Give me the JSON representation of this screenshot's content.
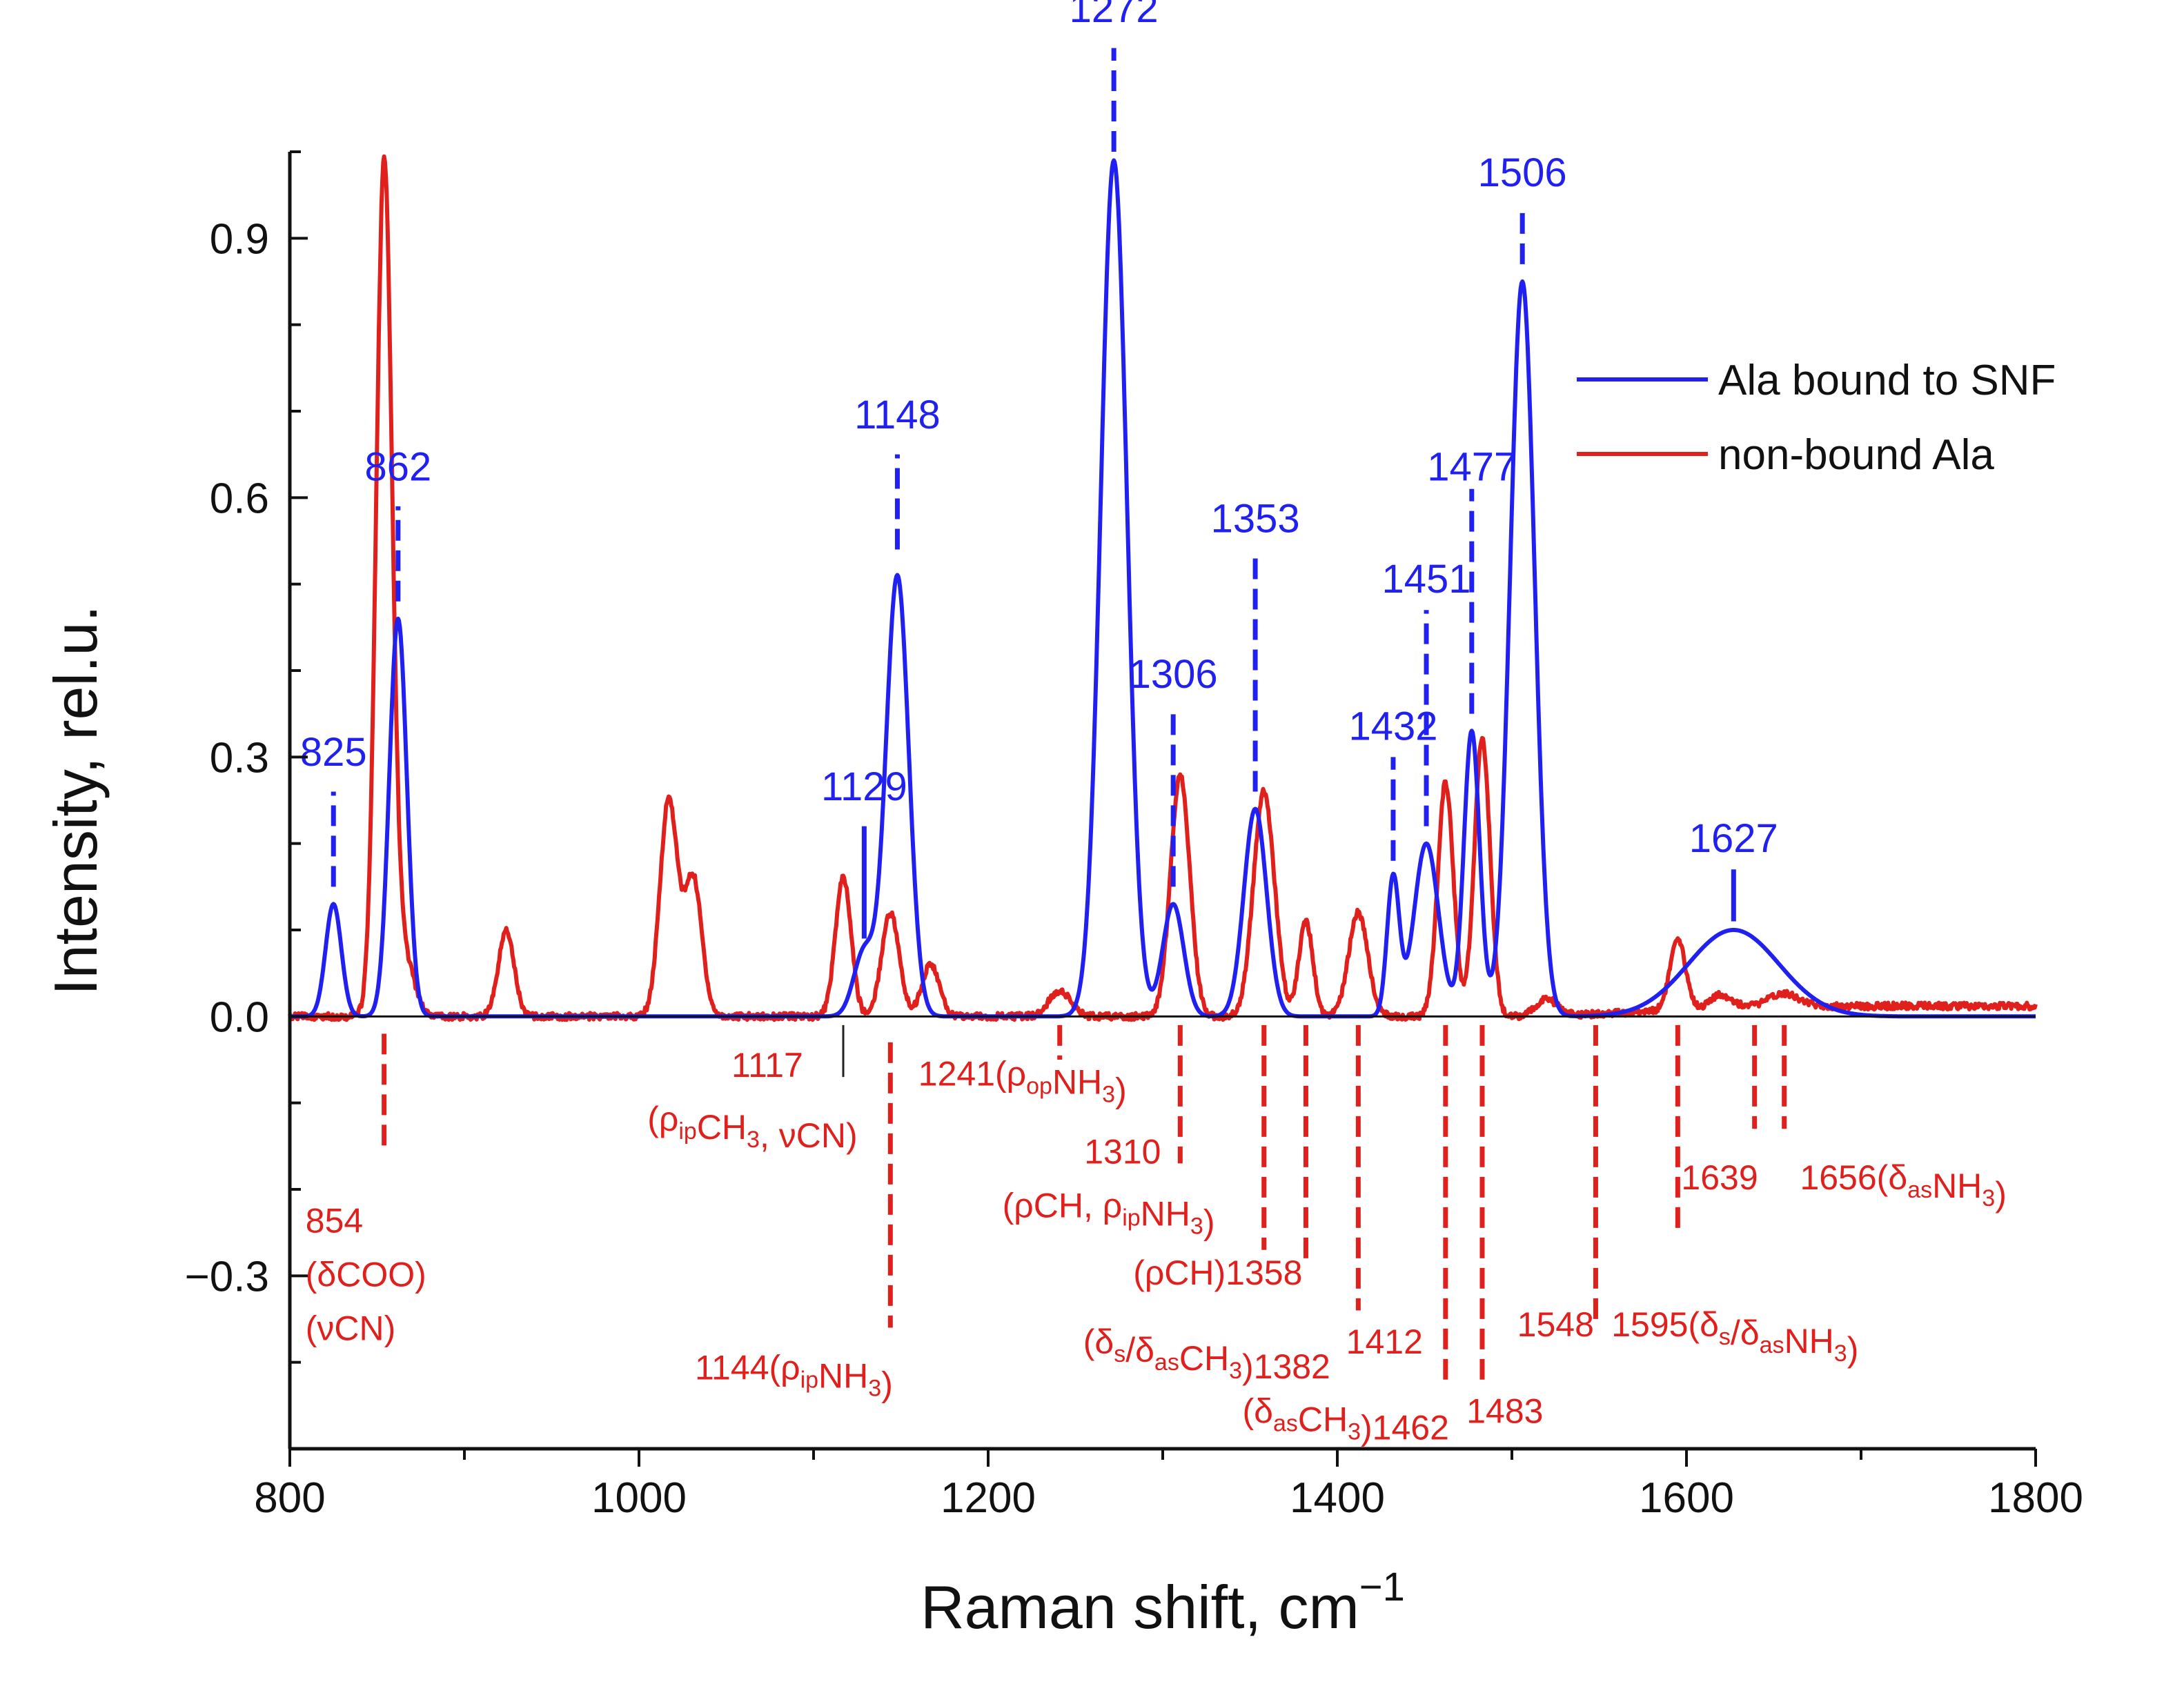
{
  "chart_data": {
    "type": "line",
    "xlabel": "Raman shift, cm",
    "xlabel_superscript": "−1",
    "ylabel": "Intensity, rel.u.",
    "xlim": [
      800,
      1800
    ],
    "ylim": [
      -0.5,
      1.0
    ],
    "x_ticks": [
      800,
      1000,
      1200,
      1400,
      1600,
      1800
    ],
    "x_tick_labels": [
      "800",
      "1000",
      "1200",
      "1400",
      "1600",
      "1800"
    ],
    "y_ticks": [
      -0.3,
      0.0,
      0.3,
      0.6,
      0.9
    ],
    "y_tick_labels": [
      "−0.3",
      "0.0",
      "0.3",
      "0.6",
      "0.9"
    ],
    "legend_position": "top-right",
    "series": [
      {
        "name": "Ala bound to SNF",
        "color": "#2020f0",
        "peaks": [
          {
            "center": 825,
            "height": 0.13,
            "width": 4.5
          },
          {
            "center": 862,
            "height": 0.46,
            "width": 5.0
          },
          {
            "center": 1129,
            "height": 0.075,
            "width": 6.0
          },
          {
            "center": 1148,
            "height": 0.51,
            "width": 6.5
          },
          {
            "center": 1272,
            "height": 0.99,
            "width": 7.5
          },
          {
            "center": 1306,
            "height": 0.13,
            "width": 6.0
          },
          {
            "center": 1353,
            "height": 0.24,
            "width": 6.5
          },
          {
            "center": 1432,
            "height": 0.16,
            "width": 3.5
          },
          {
            "center": 1451,
            "height": 0.2,
            "width": 7.0
          },
          {
            "center": 1477,
            "height": 0.33,
            "width": 4.5
          },
          {
            "center": 1506,
            "height": 0.85,
            "width": 7.0
          },
          {
            "center": 1627,
            "height": 0.1,
            "width": 26.0
          }
        ]
      },
      {
        "name": "non-bound Ala",
        "color": "#e0201c",
        "peaks": [
          {
            "center": 854,
            "height": 0.98,
            "width": 4.5
          },
          {
            "center": 865,
            "height": 0.07,
            "width": 6.0
          },
          {
            "center": 924,
            "height": 0.1,
            "width": 4.5
          },
          {
            "center": 1017,
            "height": 0.25,
            "width": 5.0
          },
          {
            "center": 1031,
            "height": 0.16,
            "width": 5.0
          },
          {
            "center": 1117,
            "height": 0.16,
            "width": 4.5
          },
          {
            "center": 1144,
            "height": 0.12,
            "width": 5.0
          },
          {
            "center": 1167,
            "height": 0.06,
            "width": 5.0
          },
          {
            "center": 1241,
            "height": 0.03,
            "width": 6.0
          },
          {
            "center": 1310,
            "height": 0.28,
            "width": 5.5
          },
          {
            "center": 1358,
            "height": 0.26,
            "width": 6.0
          },
          {
            "center": 1382,
            "height": 0.11,
            "width": 4.0
          },
          {
            "center": 1412,
            "height": 0.12,
            "width": 5.5
          },
          {
            "center": 1462,
            "height": 0.27,
            "width": 4.5
          },
          {
            "center": 1483,
            "height": 0.32,
            "width": 4.5
          },
          {
            "center": 1520,
            "height": 0.02,
            "width": 6.0
          },
          {
            "center": 1595,
            "height": 0.08,
            "width": 4.5
          },
          {
            "center": 1620,
            "height": 0.015,
            "width": 6.0
          },
          {
            "center": 1656,
            "height": 0.015,
            "width": 8.0
          }
        ],
        "baseline_noise": 0.008
      }
    ],
    "blue_annotations": [
      {
        "x": 825,
        "label": "825",
        "style": "dashed",
        "y_line": [
          0.15,
          0.26
        ],
        "y_text": 0.29
      },
      {
        "x": 862,
        "label": "862",
        "style": "dashed",
        "y_line": [
          0.48,
          0.59
        ],
        "y_text": 0.62
      },
      {
        "x": 1129,
        "label": "1129",
        "style": "solid",
        "y_line": [
          0.09,
          0.22
        ],
        "y_text": 0.25
      },
      {
        "x": 1148,
        "label": "1148",
        "style": "dashed",
        "y_line": [
          0.54,
          0.65
        ],
        "y_text": 0.68
      },
      {
        "x": 1272,
        "label": "1272",
        "style": "dashed",
        "y_line": [
          1.0,
          1.12
        ],
        "y_text": 1.15
      },
      {
        "x": 1306,
        "label": "1306",
        "style": "dashed",
        "y_line": [
          0.15,
          0.35
        ],
        "y_text": 0.38
      },
      {
        "x": 1353,
        "label": "1353",
        "style": "dashed",
        "y_line": [
          0.26,
          0.54
        ],
        "y_text": 0.56
      },
      {
        "x": 1432,
        "label": "1432",
        "style": "dashed",
        "y_line": [
          0.18,
          0.3
        ],
        "y_text": 0.32
      },
      {
        "x": 1451,
        "label": "1451",
        "style": "dashed",
        "y_line": [
          0.22,
          0.47
        ],
        "y_text": 0.49
      },
      {
        "x": 1477,
        "label": "1477",
        "style": "dashed",
        "y_line": [
          0.35,
          0.61
        ],
        "y_text": 0.62
      },
      {
        "x": 1506,
        "label": "1506",
        "style": "dashed",
        "y_line": [
          0.87,
          0.94
        ],
        "y_text": 0.96
      },
      {
        "x": 1627,
        "label": "1627",
        "style": "solid",
        "y_line": [
          0.11,
          0.17
        ],
        "y_text": 0.19
      }
    ],
    "red_annotations": [
      {
        "x": 854,
        "y_line": [
          -0.02,
          -0.16
        ],
        "lines": [
          {
            "parts": [
              {
                "t": "854"
              }
            ]
          },
          {
            "parts": [
              {
                "t": "(δCOO)"
              }
            ]
          },
          {
            "parts": [
              {
                "t": "(νCN)"
              }
            ]
          }
        ],
        "x_text": 809,
        "y_text": -0.25,
        "anchor": "start"
      },
      {
        "x": 1117,
        "y_line": [
          -0.01,
          -0.07
        ],
        "style": "thin",
        "lines": [
          {
            "parts": [
              {
                "t": "1117"
              }
            ]
          },
          {
            "parts": [
              {
                "t": "(ρ"
              },
              {
                "t": "ip",
                "sub": true
              },
              {
                "t": "CH"
              },
              {
                "t": "3",
                "sub": true
              },
              {
                "t": ", νCN)"
              }
            ]
          }
        ],
        "x_text": 1094,
        "y_text": -0.07,
        "anchor": "end",
        "second_anchor": "middle",
        "second_x": 1065
      },
      {
        "x": 1144,
        "y_line": [
          -0.03,
          -0.36
        ],
        "lines": [
          {
            "parts": [
              {
                "t": "1144(ρ"
              },
              {
                "t": "ip",
                "sub": true
              },
              {
                "t": "NH"
              },
              {
                "t": "3",
                "sub": true
              },
              {
                "t": ")"
              }
            ]
          }
        ],
        "x_text": 1032,
        "y_text": -0.42,
        "anchor": "start"
      },
      {
        "x": 1241,
        "y_line": [
          -0.01,
          -0.05
        ],
        "lines": [
          {
            "parts": [
              {
                "t": "1241(ρ"
              },
              {
                "t": "op",
                "sub": true
              },
              {
                "t": "NH"
              },
              {
                "t": "3",
                "sub": true
              },
              {
                "t": ")"
              }
            ]
          }
        ],
        "x_text": 1160,
        "y_text": -0.08,
        "anchor": "start"
      },
      {
        "x": 1310,
        "y_line": [
          -0.01,
          -0.17
        ],
        "lines": [
          {
            "parts": [
              {
                "t": "1310"
              }
            ]
          },
          {
            "parts": [
              {
                "t": "(ρCH, ρ"
              },
              {
                "t": "ip",
                "sub": true
              },
              {
                "t": "NH"
              },
              {
                "t": "3",
                "sub": true
              },
              {
                "t": ")"
              }
            ]
          }
        ],
        "x_text": 1299,
        "y_text": -0.17,
        "anchor": "end",
        "second_anchor": "middle",
        "second_x": 1269
      },
      {
        "x": 1358,
        "y_line": [
          -0.01,
          -0.27
        ],
        "lines": [
          {
            "parts": [
              {
                "t": "(ρCH)1358"
              }
            ]
          }
        ],
        "x_text": 1380,
        "y_text": -0.31,
        "anchor": "end"
      },
      {
        "x": 1382,
        "y_line": [
          -0.01,
          -0.29
        ],
        "lines": [
          {
            "parts": [
              {
                "t": "(δ"
              },
              {
                "t": "s",
                "sub": true
              },
              {
                "t": "/δ"
              },
              {
                "t": "as",
                "sub": true
              },
              {
                "t": "CH"
              },
              {
                "t": "3",
                "sub": true
              },
              {
                "t": ")1382"
              }
            ]
          }
        ],
        "x_text": 1396,
        "y_text": -0.39,
        "anchor": "end"
      },
      {
        "x": 1412,
        "y_line": [
          -0.01,
          -0.34
        ],
        "lines": [
          {
            "parts": [
              {
                "t": "1412"
              }
            ]
          }
        ],
        "x_text": 1405,
        "y_text": -0.39,
        "anchor": "start"
      },
      {
        "x": 1462,
        "y_line": [
          -0.01,
          -0.42
        ],
        "lines": [
          {
            "parts": [
              {
                "t": "(δ"
              },
              {
                "t": "as",
                "sub": true
              },
              {
                "t": "CH"
              },
              {
                "t": "3",
                "sub": true
              },
              {
                "t": ")1462"
              }
            ]
          }
        ],
        "x_text": 1464,
        "y_text": -0.47,
        "anchor": "end"
      },
      {
        "x": 1483,
        "y_line": [
          -0.01,
          -0.42
        ],
        "lines": [
          {
            "parts": [
              {
                "t": "1483"
              }
            ]
          }
        ],
        "x_text": 1474,
        "y_text": -0.47,
        "anchor": "start"
      },
      {
        "x": 1548,
        "y_line": [
          -0.01,
          -0.36
        ],
        "lines": [
          {
            "parts": [
              {
                "t": "1548"
              }
            ]
          }
        ],
        "x_text": 1547,
        "y_text": -0.37,
        "anchor": "end"
      },
      {
        "x": 1595,
        "y_line": [
          -0.01,
          -0.25
        ],
        "lines": [
          {
            "parts": [
              {
                "t": "1595(δ"
              },
              {
                "t": "s",
                "sub": true
              },
              {
                "t": "/δ"
              },
              {
                "t": "as",
                "sub": true
              },
              {
                "t": "NH"
              },
              {
                "t": "3",
                "sub": true
              },
              {
                "t": ")"
              }
            ]
          }
        ],
        "x_text": 1557,
        "y_text": -0.37,
        "anchor": "start"
      },
      {
        "x": 1639,
        "y_line": [
          -0.01,
          -0.13
        ],
        "lines": [
          {
            "parts": [
              {
                "t": "1639"
              }
            ]
          }
        ],
        "x_text": 1597,
        "y_text": -0.2,
        "anchor": "start"
      },
      {
        "x": 1656,
        "y_line": [
          -0.01,
          -0.13
        ],
        "lines": [
          {
            "parts": [
              {
                "t": "1656(δ"
              },
              {
                "t": "as",
                "sub": true
              },
              {
                "t": "NH"
              },
              {
                "t": "3",
                "sub": true
              },
              {
                "t": ")"
              }
            ]
          }
        ],
        "x_text": 1665,
        "y_text": -0.2,
        "anchor": "start"
      }
    ]
  }
}
